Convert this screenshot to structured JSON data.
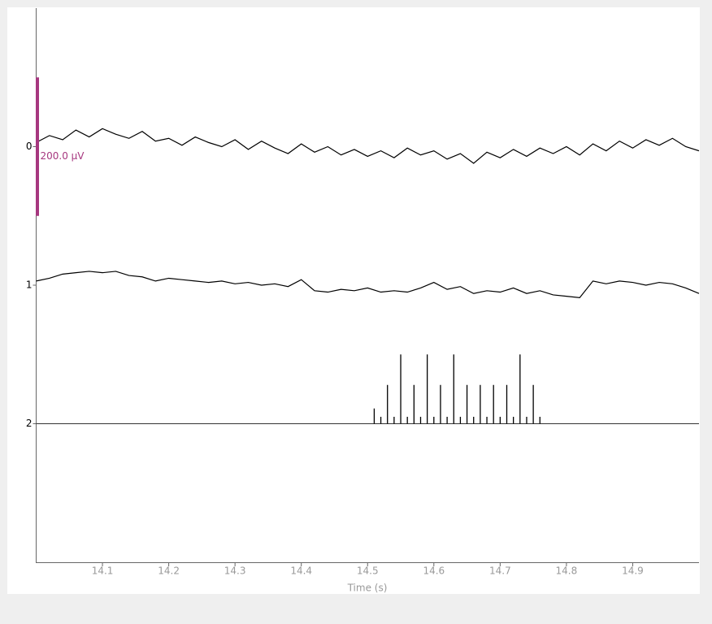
{
  "chart_data": {
    "type": "line",
    "xlabel": "Time (s)",
    "xlim": [
      14.0,
      15.0
    ],
    "xticks": [
      14.1,
      14.2,
      14.3,
      14.4,
      14.5,
      14.6,
      14.7,
      14.8,
      14.9
    ],
    "ylim": [
      -1,
      3
    ],
    "y_inverted": true,
    "yticks": [
      0,
      1,
      2
    ],
    "x": [
      14.0,
      14.02,
      14.04,
      14.06,
      14.08,
      14.1,
      14.12,
      14.14,
      14.16,
      14.18,
      14.2,
      14.22,
      14.24,
      14.26,
      14.28,
      14.3,
      14.32,
      14.34,
      14.36,
      14.38,
      14.4,
      14.42,
      14.44,
      14.46,
      14.48,
      14.5,
      14.52,
      14.54,
      14.56,
      14.58,
      14.6,
      14.62,
      14.64,
      14.66,
      14.68,
      14.7,
      14.72,
      14.74,
      14.76,
      14.78,
      14.8,
      14.82,
      14.84,
      14.86,
      14.88,
      14.9,
      14.92,
      14.94,
      14.96,
      14.98,
      15.0
    ],
    "series": [
      {
        "color": "#000000",
        "values": [
          -0.03,
          -0.08,
          -0.05,
          -0.12,
          -0.07,
          -0.13,
          -0.09,
          -0.06,
          -0.11,
          -0.04,
          -0.06,
          -0.01,
          -0.07,
          -0.03,
          0.0,
          -0.05,
          0.02,
          -0.04,
          0.01,
          0.05,
          -0.02,
          0.04,
          0.0,
          0.06,
          0.02,
          0.07,
          0.03,
          0.08,
          0.01,
          0.06,
          0.03,
          0.09,
          0.05,
          0.12,
          0.04,
          0.08,
          0.02,
          0.07,
          0.01,
          0.05,
          0.0,
          0.06,
          -0.02,
          0.03,
          -0.04,
          0.01,
          -0.05,
          -0.01,
          -0.06,
          0.0,
          0.03
        ]
      },
      {
        "color": "#000000",
        "values": [
          0.97,
          0.95,
          0.92,
          0.91,
          0.9,
          0.91,
          0.9,
          0.93,
          0.94,
          0.97,
          0.95,
          0.96,
          0.97,
          0.98,
          0.97,
          0.99,
          0.98,
          1.0,
          0.99,
          1.01,
          0.96,
          1.04,
          1.05,
          1.03,
          1.04,
          1.02,
          1.05,
          1.04,
          1.05,
          1.02,
          0.98,
          1.03,
          1.01,
          1.06,
          1.04,
          1.05,
          1.02,
          1.06,
          1.04,
          1.07,
          1.08,
          1.09,
          0.97,
          0.99,
          0.97,
          0.98,
          1.0,
          0.98,
          0.99,
          1.02,
          1.06
        ]
      },
      {
        "type": "stem",
        "color": "#000000",
        "baseline": 2,
        "x": [
          14.51,
          14.52,
          14.53,
          14.54,
          14.55,
          14.56,
          14.57,
          14.58,
          14.59,
          14.6,
          14.61,
          14.62,
          14.63,
          14.64,
          14.65,
          14.66,
          14.67,
          14.68,
          14.69,
          14.7,
          14.71,
          14.72,
          14.73,
          14.74,
          14.75,
          14.76
        ],
        "values": [
          1.89,
          1.95,
          1.72,
          1.95,
          1.5,
          1.95,
          1.72,
          1.95,
          1.5,
          1.95,
          1.72,
          1.95,
          1.5,
          1.95,
          1.72,
          1.95,
          1.72,
          1.95,
          1.72,
          1.95,
          1.72,
          1.95,
          1.5,
          1.95,
          1.72,
          1.95
        ]
      }
    ],
    "scale_bar": {
      "label": "200.0 µV",
      "span": [
        -0.5,
        0.5
      ],
      "color": "#a6377f"
    }
  }
}
